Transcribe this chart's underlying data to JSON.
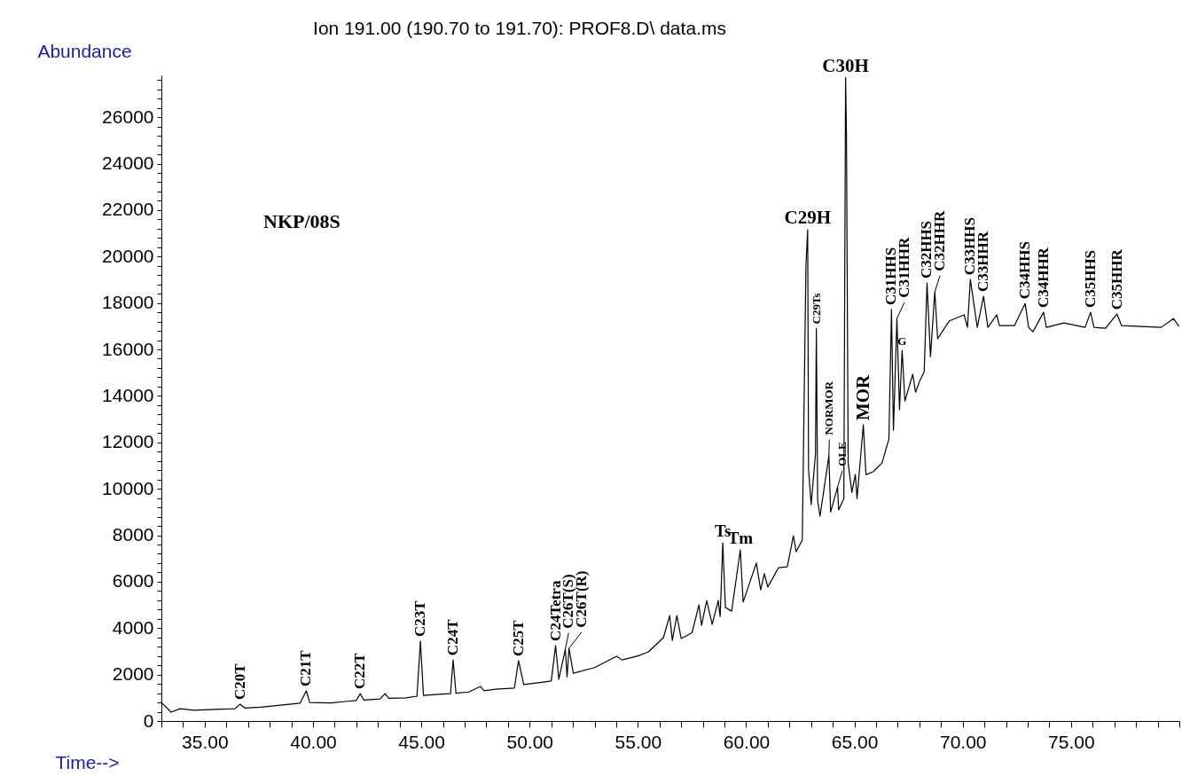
{
  "chart_data": {
    "type": "line",
    "title": "Ion 191.00 (190.70 to 191.70): PROF8.D\\ data.ms",
    "xlabel": "Time-->",
    "ylabel": "Abundance",
    "x": [
      33.0,
      33.45,
      33.86,
      34.5,
      35.5,
      36.4,
      36.63,
      36.85,
      37.6,
      38.5,
      39.4,
      39.69,
      39.85,
      40.8,
      41.6,
      42.0,
      42.18,
      42.35,
      43.1,
      43.33,
      43.5,
      44.3,
      44.8,
      44.96,
      45.1,
      45.8,
      46.35,
      46.47,
      46.6,
      47.2,
      47.73,
      47.9,
      48.43,
      49.3,
      49.49,
      49.73,
      50.4,
      51.0,
      51.2,
      51.35,
      51.65,
      51.73,
      51.82,
      52.02,
      53.0,
      54.02,
      54.27,
      55.0,
      55.49,
      56.18,
      56.47,
      56.59,
      56.8,
      57.0,
      57.5,
      57.82,
      57.94,
      58.18,
      58.43,
      58.71,
      58.8,
      58.92,
      59.04,
      59.33,
      59.73,
      59.86,
      60.47,
      60.67,
      60.84,
      61.0,
      61.49,
      61.9,
      62.18,
      62.31,
      62.59,
      62.76,
      62.84,
      62.88,
      63.0,
      63.2,
      63.24,
      63.3,
      63.41,
      63.82,
      63.9,
      64.22,
      64.27,
      64.51,
      64.55,
      64.59,
      64.63,
      64.71,
      64.88,
      65.04,
      65.12,
      65.41,
      65.53,
      65.86,
      66.27,
      66.59,
      66.71,
      66.8,
      66.96,
      67.08,
      67.2,
      67.33,
      67.69,
      67.82,
      68.02,
      68.22,
      68.35,
      68.51,
      68.71,
      68.84,
      69.37,
      70.06,
      70.22,
      70.35,
      70.67,
      70.96,
      71.16,
      71.57,
      71.69,
      72.39,
      72.88,
      73.04,
      73.24,
      73.73,
      73.86,
      74.67,
      75.65,
      75.9,
      76.06,
      76.59,
      77.12,
      77.33,
      79.16,
      79.73,
      79.98
    ],
    "series": [
      {
        "color": "#000000",
        "values": [
          800,
          380,
          530,
          460,
          500,
          530,
          725,
          560,
          600,
          680,
          765,
          1300,
          800,
          780,
          850,
          880,
          1180,
          900,
          950,
          1180,
          980,
          1000,
          1070,
          3440,
          1100,
          1150,
          1180,
          2630,
          1200,
          1250,
          1490,
          1300,
          1370,
          1420,
          2600,
          1570,
          1650,
          1720,
          3250,
          1800,
          3090,
          1900,
          3130,
          2060,
          2300,
          2790,
          2630,
          2800,
          2980,
          3590,
          4540,
          3470,
          4540,
          3550,
          3800,
          5000,
          4120,
          5190,
          4160,
          5190,
          4500,
          7670,
          4890,
          4730,
          7370,
          5120,
          6800,
          5650,
          6340,
          5770,
          6600,
          6640,
          7980,
          7290,
          7790,
          19620,
          21150,
          10840,
          9320,
          11490,
          16900,
          9500,
          8820,
          11420,
          9000,
          10080,
          9090,
          9580,
          18750,
          27700,
          25350,
          11110,
          9850,
          10610,
          9580,
          12750,
          10610,
          10730,
          11110,
          12140,
          17720,
          12520,
          17330,
          13400,
          15960,
          13780,
          14930,
          14160,
          14660,
          15040,
          18860,
          15690,
          18480,
          16460,
          17220,
          17490,
          16950,
          19010,
          16950,
          18290,
          16950,
          17490,
          17030,
          17030,
          17980,
          16950,
          16760,
          17600,
          16950,
          17140,
          16950,
          17600,
          16950,
          16910,
          17520,
          17030,
          16950,
          17330,
          16990
        ]
      }
    ],
    "xlim": [
      33,
      80
    ],
    "xticks": [
      {
        "value": 33,
        "label": null
      },
      {
        "value": 34,
        "label": null
      },
      {
        "value": 35,
        "label": "35.00"
      },
      {
        "value": 36,
        "label": null
      },
      {
        "value": 37,
        "label": null
      },
      {
        "value": 38,
        "label": null
      },
      {
        "value": 39,
        "label": null
      },
      {
        "value": 40,
        "label": "40.00"
      },
      {
        "value": 41,
        "label": null
      },
      {
        "value": 42,
        "label": null
      },
      {
        "value": 43,
        "label": null
      },
      {
        "value": 44,
        "label": null
      },
      {
        "value": 45,
        "label": "45.00"
      },
      {
        "value": 46,
        "label": null
      },
      {
        "value": 47,
        "label": null
      },
      {
        "value": 48,
        "label": null
      },
      {
        "value": 49,
        "label": null
      },
      {
        "value": 50,
        "label": "50.00"
      },
      {
        "value": 51,
        "label": null
      },
      {
        "value": 52,
        "label": null
      },
      {
        "value": 53,
        "label": null
      },
      {
        "value": 54,
        "label": null
      },
      {
        "value": 55,
        "label": "55.00"
      },
      {
        "value": 56,
        "label": null
      },
      {
        "value": 57,
        "label": null
      },
      {
        "value": 58,
        "label": null
      },
      {
        "value": 59,
        "label": null
      },
      {
        "value": 60,
        "label": "60.00"
      },
      {
        "value": 61,
        "label": null
      },
      {
        "value": 62,
        "label": null
      },
      {
        "value": 63,
        "label": null
      },
      {
        "value": 64,
        "label": null
      },
      {
        "value": 65,
        "label": "65.00"
      },
      {
        "value": 66,
        "label": null
      },
      {
        "value": 67,
        "label": null
      },
      {
        "value": 68,
        "label": null
      },
      {
        "value": 69,
        "label": null
      },
      {
        "value": 70,
        "label": "70.00"
      },
      {
        "value": 71,
        "label": null
      },
      {
        "value": 72,
        "label": null
      },
      {
        "value": 73,
        "label": null
      },
      {
        "value": 74,
        "label": null
      },
      {
        "value": 75,
        "label": "75.00"
      },
      {
        "value": 76,
        "label": null
      },
      {
        "value": 77,
        "label": null
      },
      {
        "value": 78,
        "label": null
      },
      {
        "value": 79,
        "label": null
      },
      {
        "value": 80,
        "label": null
      }
    ],
    "ylim": [
      0,
      27800
    ],
    "yticks": [
      0,
      {
        "value": 400,
        "label": null
      },
      {
        "value": 800,
        "label": null
      },
      {
        "value": 1200,
        "label": null
      },
      {
        "value": 1600,
        "label": null
      },
      2000,
      {
        "value": 2400,
        "label": null
      },
      {
        "value": 2800,
        "label": null
      },
      {
        "value": 3200,
        "label": null
      },
      {
        "value": 3600,
        "label": null
      },
      4000,
      {
        "value": 4400,
        "label": null
      },
      {
        "value": 4800,
        "label": null
      },
      {
        "value": 5200,
        "label": null
      },
      {
        "value": 5600,
        "label": null
      },
      6000,
      {
        "value": 6400,
        "label": null
      },
      {
        "value": 6800,
        "label": null
      },
      {
        "value": 7200,
        "label": null
      },
      {
        "value": 7600,
        "label": null
      },
      8000,
      {
        "value": 8400,
        "label": null
      },
      {
        "value": 8800,
        "label": null
      },
      {
        "value": 9200,
        "label": null
      },
      {
        "value": 9600,
        "label": null
      },
      10000,
      {
        "value": 10400,
        "label": null
      },
      {
        "value": 10800,
        "label": null
      },
      {
        "value": 11200,
        "label": null
      },
      {
        "value": 11600,
        "label": null
      },
      12000,
      {
        "value": 12400,
        "label": null
      },
      {
        "value": 12800,
        "label": null
      },
      {
        "value": 13200,
        "label": null
      },
      {
        "value": 13600,
        "label": null
      },
      14000,
      {
        "value": 14400,
        "label": null
      },
      {
        "value": 14800,
        "label": null
      },
      {
        "value": 15200,
        "label": null
      },
      {
        "value": 15600,
        "label": null
      },
      16000,
      {
        "value": 16400,
        "label": null
      },
      {
        "value": 16800,
        "label": null
      },
      {
        "value": 17200,
        "label": null
      },
      {
        "value": 17600,
        "label": null
      },
      18000,
      {
        "value": 18400,
        "label": null
      },
      {
        "value": 18800,
        "label": null
      },
      {
        "value": 19200,
        "label": null
      },
      {
        "value": 19600,
        "label": null
      },
      20000,
      {
        "value": 20400,
        "label": null
      },
      {
        "value": 20800,
        "label": null
      },
      {
        "value": 21200,
        "label": null
      },
      {
        "value": 21600,
        "label": null
      },
      22000,
      {
        "value": 22400,
        "label": null
      },
      {
        "value": 22800,
        "label": null
      },
      {
        "value": 23200,
        "label": null
      },
      {
        "value": 23600,
        "label": null
      },
      24000,
      {
        "value": 24400,
        "label": null
      },
      {
        "value": 24800,
        "label": null
      },
      {
        "value": 25200,
        "label": null
      },
      {
        "value": 25600,
        "label": null
      },
      26000,
      {
        "value": 26400,
        "label": null
      },
      {
        "value": 26800,
        "label": null
      },
      {
        "value": 27200,
        "label": null
      },
      {
        "value": 27600,
        "label": null
      }
    ],
    "annotations": [
      {
        "text": "C20T",
        "x": 36.63,
        "y": 725
      },
      {
        "text": "C21T",
        "x": 39.69,
        "y": 1300
      },
      {
        "text": "C22T",
        "x": 42.18,
        "y": 1180
      },
      {
        "text": "C23T",
        "x": 44.96,
        "y": 3440
      },
      {
        "text": "C24T",
        "x": 46.47,
        "y": 2630
      },
      {
        "text": "C25T",
        "x": 49.49,
        "y": 2600
      },
      {
        "text": "C24Tetra",
        "x": 51.2,
        "y": 3250
      },
      {
        "text": "C26T(S)",
        "x": 51.65,
        "y": 3090
      },
      {
        "text": "C26T(R)",
        "x": 51.82,
        "y": 3130
      },
      {
        "text": "Ts",
        "x": 58.92,
        "y": 7670
      },
      {
        "text": "Tm",
        "x": 59.73,
        "y": 7370
      },
      {
        "text": "C29H",
        "x": 62.84,
        "y": 21150
      },
      {
        "text": "C29Ts",
        "x": 63.24,
        "y": 16900
      },
      {
        "text": "NORMOR",
        "x": 63.82,
        "y": 11420
      },
      {
        "text": "OLE",
        "x": 64.22,
        "y": 10080
      },
      {
        "text": "C30H",
        "x": 64.59,
        "y": 27700
      },
      {
        "text": "MOR",
        "x": 65.41,
        "y": 12750
      },
      {
        "text": "C31HHS",
        "x": 66.71,
        "y": 17720
      },
      {
        "text": "C31HHR",
        "x": 66.96,
        "y": 17330
      },
      {
        "text": "G",
        "x": 67.2,
        "y": 15960
      },
      {
        "text": "C32HHS",
        "x": 68.35,
        "y": 18860
      },
      {
        "text": "C32HHR",
        "x": 68.71,
        "y": 18480
      },
      {
        "text": "C33HHS",
        "x": 70.35,
        "y": 19010
      },
      {
        "text": "C33HHR",
        "x": 70.96,
        "y": 18290
      },
      {
        "text": "C34HHS",
        "x": 72.88,
        "y": 17980
      },
      {
        "text": "C34HHR",
        "x": 73.73,
        "y": 17600
      },
      {
        "text": "C35HHS",
        "x": 75.9,
        "y": 17600
      },
      {
        "text": "C35HHR",
        "x": 77.12,
        "y": 17520
      },
      "NKP/08S"
    ]
  }
}
